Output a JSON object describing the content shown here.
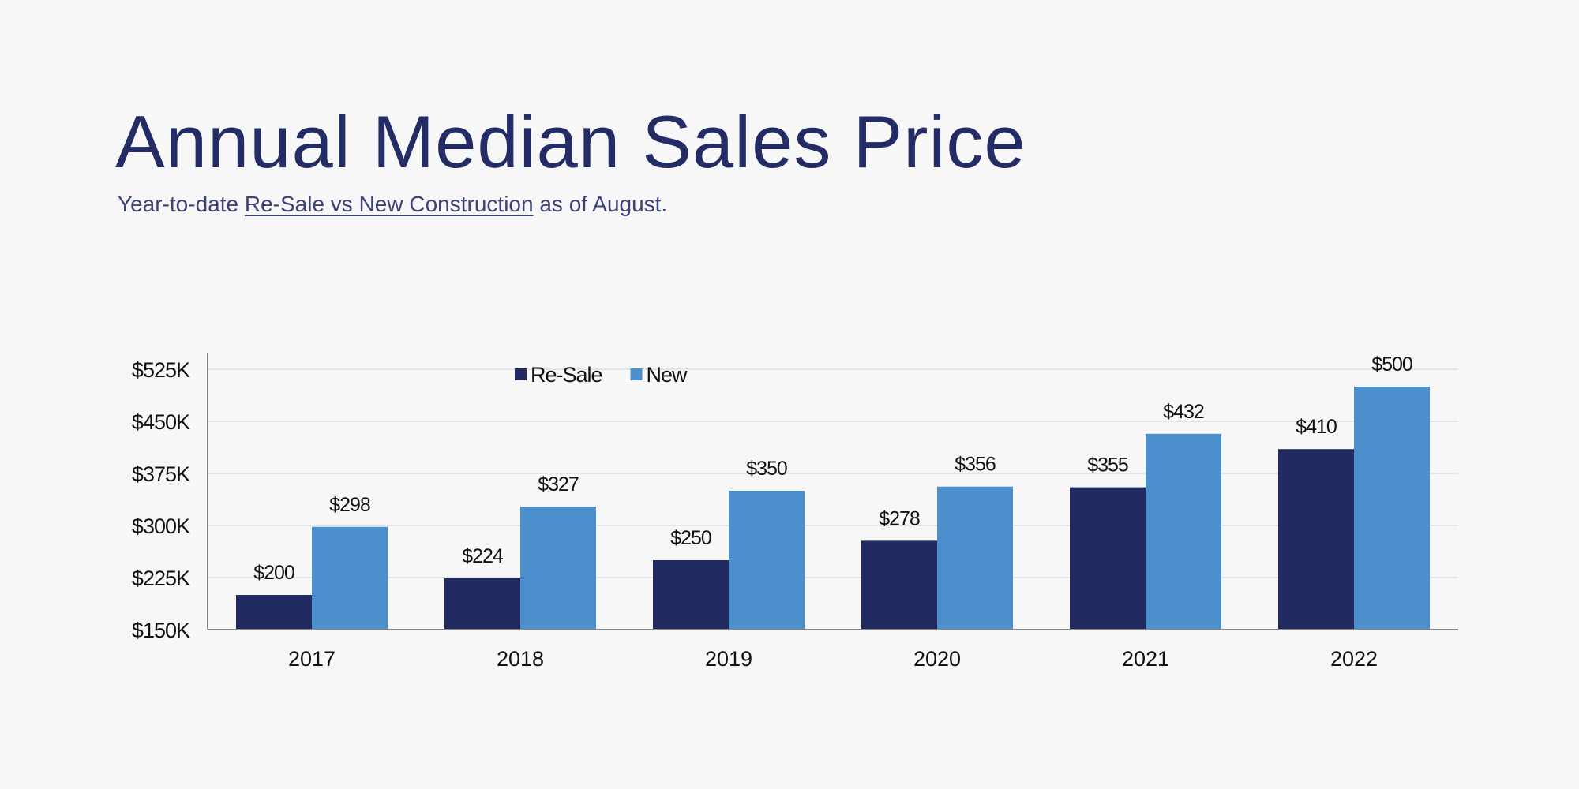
{
  "title": "Annual Median Sales Price",
  "subtitle": {
    "before": "Year-to-date ",
    "link": "Re-Sale vs New Construction",
    "after": " as of August."
  },
  "colors": {
    "resale": "#222a62",
    "new": "#4b8fcc",
    "grid": "#dde6f2",
    "axis": "#888888",
    "text": "#111111",
    "title": "#242c66"
  },
  "chart_data": {
    "type": "bar",
    "categories": [
      "2017",
      "2018",
      "2019",
      "2020",
      "2021",
      "2022"
    ],
    "series": [
      {
        "name": "Re-Sale",
        "values": [
          200,
          224,
          250,
          278,
          355,
          410
        ],
        "labels": [
          "$200",
          "$224",
          "$250",
          "$278",
          "$355",
          "$410"
        ]
      },
      {
        "name": "New",
        "values": [
          298,
          327,
          350,
          356,
          432,
          500
        ],
        "labels": [
          "$298",
          "$327",
          "$350",
          "$356",
          "$432",
          "$500"
        ]
      }
    ],
    "unit": "$K",
    "ylim": [
      150,
      525
    ],
    "yticks": [
      150,
      225,
      300,
      375,
      450,
      525
    ],
    "ytick_labels": [
      "$150K",
      "$225K",
      "$300K",
      "$375K",
      "$450K",
      "$525K"
    ],
    "grid": true,
    "legend": "top-center"
  }
}
